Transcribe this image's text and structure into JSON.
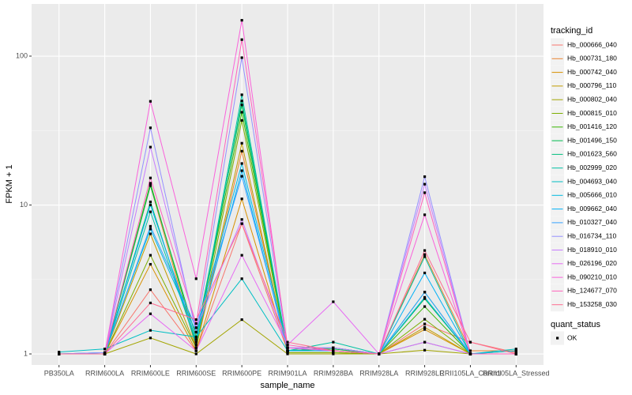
{
  "chart_data": {
    "type": "line",
    "x_label": "sample_name",
    "y_label": "FPKM + 1",
    "log_scale": true,
    "grid": true,
    "categories": [
      "PB350LA",
      "RRIM600LA",
      "RRIM600LE",
      "RRIM600SE",
      "RRIM600PE",
      "RRIM901LA",
      "RRIM928BA",
      "RRIM928LA",
      "RRIM928LE",
      "RRII105LA_Control",
      "RRII105LA_Stressed"
    ],
    "ylim": [
      0.843,
      224
    ],
    "yticks": [
      1,
      10,
      100
    ],
    "legend_title": "tracking_id",
    "legend_position": "right",
    "point_legend_title": "quant_status",
    "point_legend_label": "OK",
    "point_color": "#000000",
    "series": [
      {
        "name": "Hb_000666_040",
        "color": "#F8766D",
        "values": [
          1,
          1,
          2.7,
          1.05,
          7.5,
          1.05,
          1.05,
          1,
          1.59,
          1.2,
          1.02
        ]
      },
      {
        "name": "Hb_000731_180",
        "color": "#EA8331",
        "values": [
          1,
          1,
          13.5,
          1.1,
          23,
          1.05,
          1.1,
          1,
          4.65,
          1.05,
          1.05
        ]
      },
      {
        "name": "Hb_000742_040",
        "color": "#D89000",
        "values": [
          1,
          1,
          4.0,
          1.05,
          11,
          1.05,
          1.05,
          1,
          1.46,
          1,
          1.05
        ]
      },
      {
        "name": "Hb_000796_110",
        "color": "#C09B00",
        "values": [
          1,
          1,
          6.4,
          1.1,
          26,
          1.02,
          1.02,
          1,
          1.51,
          1,
          1
        ]
      },
      {
        "name": "Hb_000802_040",
        "color": "#A3A500",
        "values": [
          1,
          1,
          1.28,
          1,
          1.7,
          1,
          1,
          1,
          1.06,
          1,
          1
        ]
      },
      {
        "name": "Hb_000815_010",
        "color": "#7CAE00",
        "values": [
          1,
          1,
          4.6,
          1.1,
          37,
          1.02,
          1.02,
          1,
          1.71,
          1,
          1
        ]
      },
      {
        "name": "Hb_001416_120",
        "color": "#39B600",
        "values": [
          1,
          1,
          14,
          1.2,
          42,
          1.05,
          1.05,
          1,
          2.08,
          1,
          1
        ]
      },
      {
        "name": "Hb_001496_150",
        "color": "#00BB4E",
        "values": [
          1,
          1,
          13.5,
          1.3,
          47,
          1.05,
          1.08,
          1,
          2.35,
          1,
          1
        ]
      },
      {
        "name": "Hb_001623_560",
        "color": "#00BF7D",
        "values": [
          1,
          1,
          10.5,
          1.15,
          50,
          1.05,
          1.1,
          1,
          2.6,
          1,
          1
        ]
      },
      {
        "name": "Hb_002999_020",
        "color": "#00C1A3",
        "values": [
          1,
          1,
          9,
          1.2,
          55,
          1.05,
          1.2,
          1,
          4.5,
          1,
          1
        ]
      },
      {
        "name": "Hb_004693_040",
        "color": "#00BFC4",
        "values": [
          1.03,
          1.08,
          1.44,
          1.3,
          3.2,
          1.05,
          1.05,
          1,
          1.2,
          1,
          1.08
        ]
      },
      {
        "name": "Hb_005666_010",
        "color": "#00BAE0",
        "values": [
          1,
          1.02,
          6.9,
          1.4,
          19,
          1.1,
          1.1,
          1,
          2.4,
          1,
          1.05
        ]
      },
      {
        "name": "Hb_009662_040",
        "color": "#00B0F6",
        "values": [
          1,
          1.02,
          10,
          1.25,
          17,
          1.05,
          1.05,
          1,
          3.5,
          1,
          1
        ]
      },
      {
        "name": "Hb_010327_040",
        "color": "#35A2FF",
        "values": [
          1,
          1,
          7.2,
          1.5,
          15.6,
          1.1,
          1.05,
          1,
          2.6,
          1,
          1
        ]
      },
      {
        "name": "Hb_016734_110",
        "color": "#9590FF",
        "values": [
          1,
          1.02,
          33,
          1.4,
          97.6,
          1.1,
          1.05,
          1,
          15.5,
          1,
          1
        ]
      },
      {
        "name": "Hb_018910_010",
        "color": "#C77CFF",
        "values": [
          1,
          1,
          24.5,
          1.5,
          8,
          1.1,
          1.1,
          1,
          13.8,
          1,
          1
        ]
      },
      {
        "name": "Hb_026196_020",
        "color": "#E76BF3",
        "values": [
          1,
          1,
          1.86,
          1.05,
          4.6,
          1.15,
          2.24,
          1,
          1.2,
          1,
          1
        ]
      },
      {
        "name": "Hb_090210_010",
        "color": "#FA62DB",
        "values": [
          1,
          1,
          49.7,
          3.2,
          174,
          1.1,
          1.05,
          1,
          8.6,
          1,
          1
        ]
      },
      {
        "name": "Hb_124677_070",
        "color": "#FF62BC",
        "values": [
          1,
          1,
          15.2,
          1.6,
          129,
          1.15,
          1.05,
          1,
          12.1,
          1,
          1
        ]
      },
      {
        "name": "Hb_153258_030",
        "color": "#FF6C91",
        "values": [
          1,
          1,
          2.2,
          1.7,
          7.5,
          1.2,
          1.05,
          1,
          4.95,
          1.2,
          1
        ]
      }
    ]
  }
}
